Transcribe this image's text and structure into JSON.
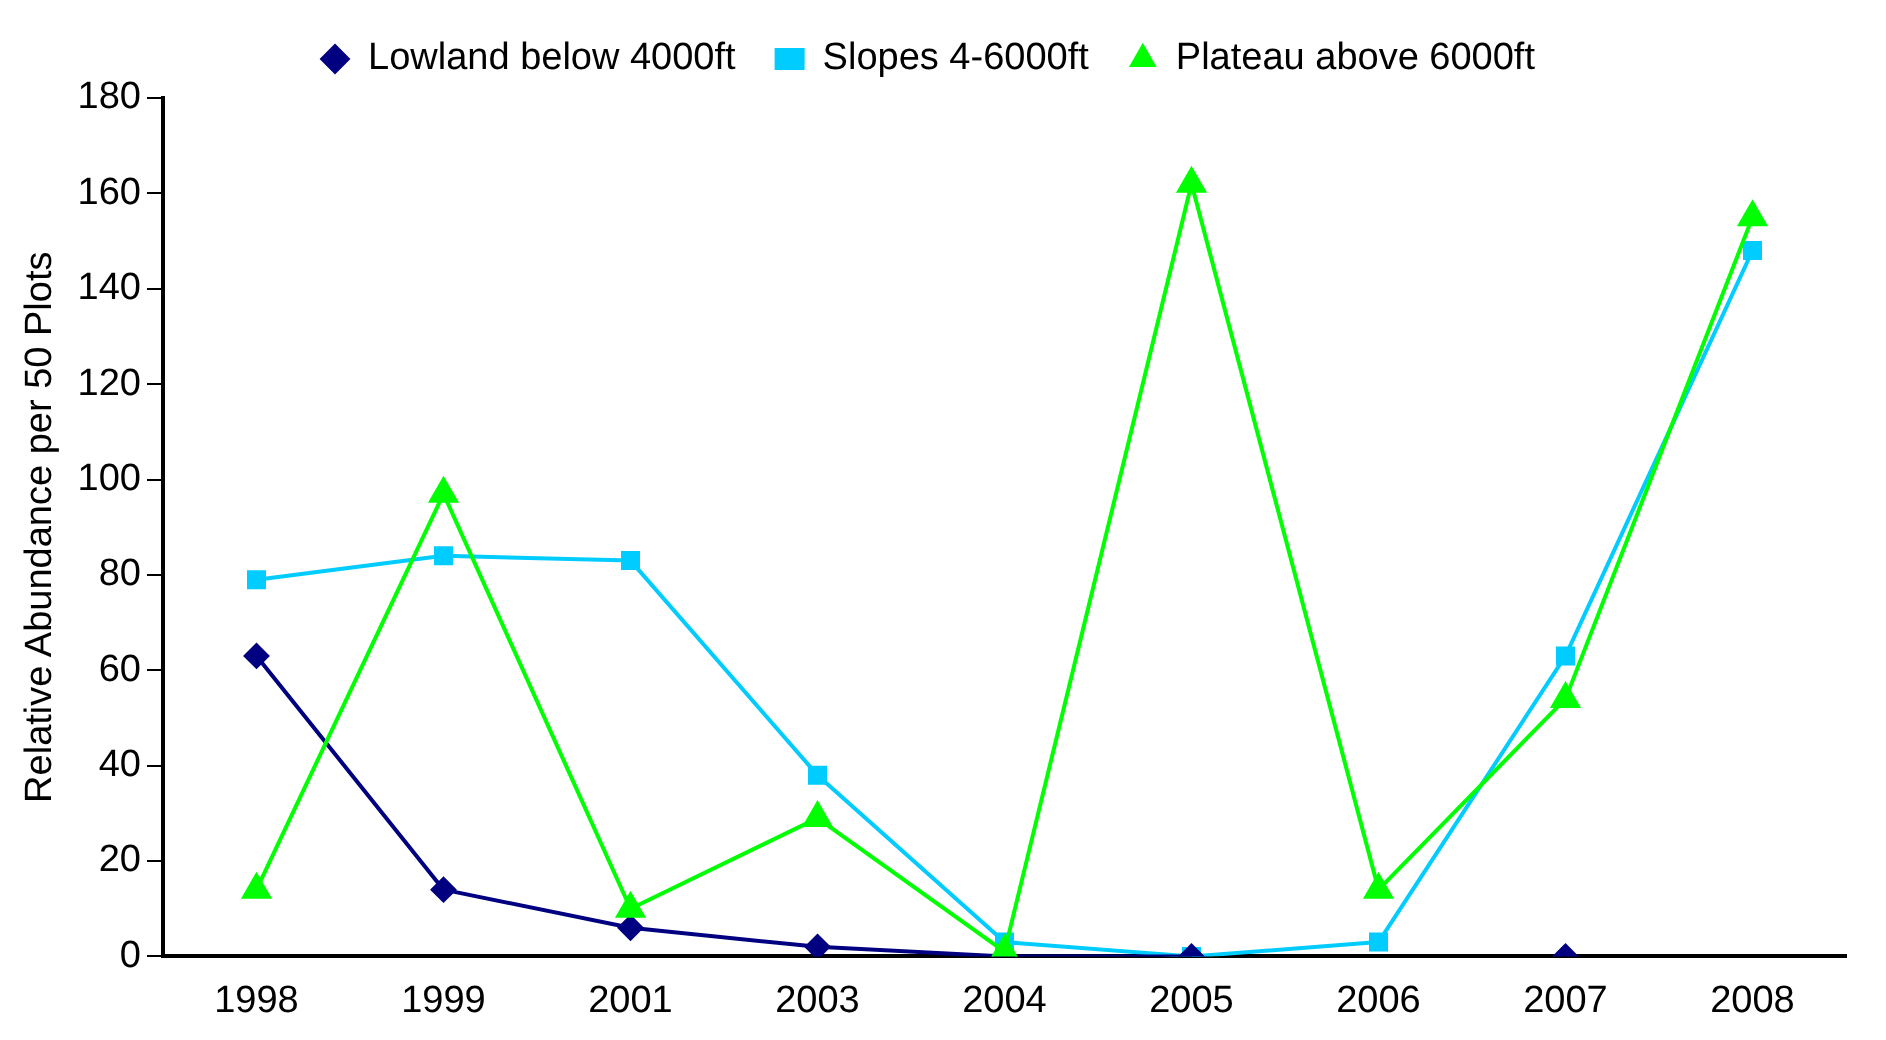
{
  "chart_data": {
    "type": "line",
    "ylabel": "Relative Abundance per 50 Plots",
    "categories": [
      "1998",
      "1999",
      "2001",
      "2003",
      "2004",
      "2005",
      "2006",
      "2007",
      "2008"
    ],
    "series": [
      {
        "name": "Lowland below 4000ft",
        "color": "#000080",
        "marker": "diamond",
        "values": [
          63,
          14,
          6,
          2,
          0,
          0,
          null,
          0,
          null
        ]
      },
      {
        "name": "Slopes 4-6000ft",
        "color": "#00ccff",
        "marker": "square",
        "values": [
          79,
          84,
          83,
          38,
          3,
          0,
          3,
          63,
          148
        ]
      },
      {
        "name": "Plateau above 6000ft",
        "color": "#00ff00",
        "marker": "triangle",
        "values": [
          14,
          97,
          10,
          29,
          1,
          162,
          14,
          54,
          155
        ]
      }
    ],
    "ylim": [
      0,
      180
    ],
    "yticks": [
      0,
      20,
      40,
      60,
      80,
      100,
      120,
      140,
      160,
      180
    ],
    "grid": false,
    "legend": "top",
    "line_style": "solid"
  }
}
